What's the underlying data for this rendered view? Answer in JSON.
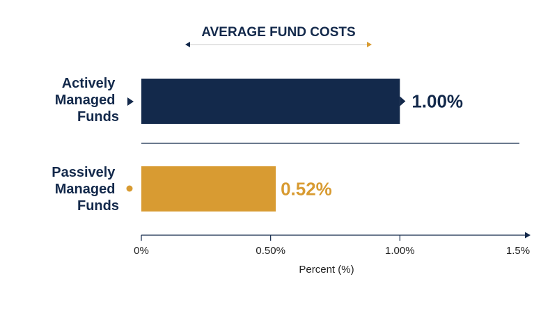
{
  "chart_data": {
    "type": "bar",
    "orientation": "horizontal",
    "title": "AVERAGE FUND COSTS",
    "categories": [
      [
        "Actively",
        "Managed",
        "Funds"
      ],
      [
        "Passively",
        "Managed",
        "Funds"
      ]
    ],
    "values": [
      1.0,
      0.52
    ],
    "value_labels": [
      "1.00%",
      "0.52%"
    ],
    "colors": [
      "#13294b",
      "#d89b32"
    ],
    "xlabel": "Percent (%)",
    "ylabel": "",
    "xlim": [
      0,
      1.5
    ],
    "ticks": [
      0,
      0.5,
      1.0,
      1.5
    ],
    "tick_labels": [
      "0%",
      "0.50%",
      "1.00%",
      "1.5%"
    ],
    "grid": false
  }
}
